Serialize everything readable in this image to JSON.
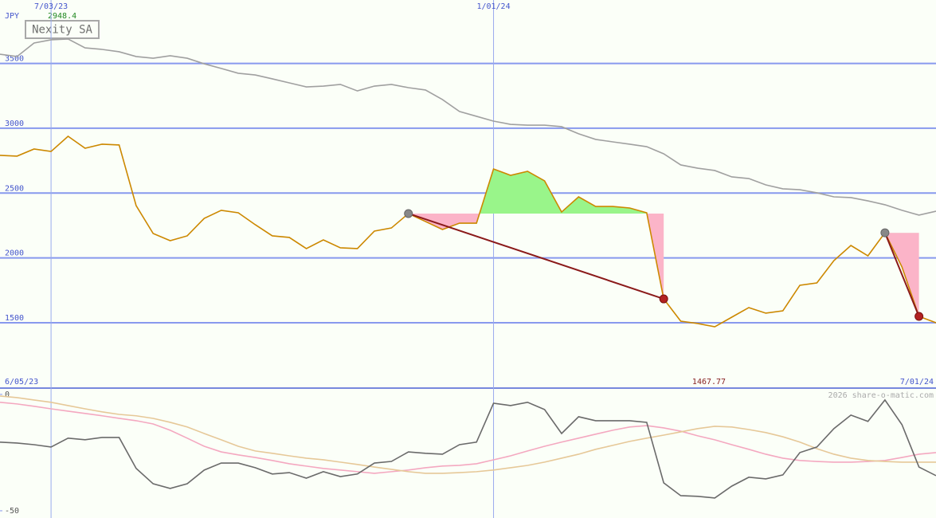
{
  "chart_data": [
    {
      "type": "line",
      "title": "Nexity SA",
      "unit": "JPY",
      "categories": [
        "6/05/23",
        null,
        null,
        "7/03/23",
        null,
        null,
        null,
        null,
        null,
        null,
        null,
        null,
        null,
        null,
        null,
        null,
        null,
        null,
        null,
        null,
        null,
        null,
        null,
        null,
        null,
        null,
        null,
        null,
        null,
        "1/01/24",
        null,
        null,
        null,
        null,
        null,
        null,
        null,
        null,
        null,
        null,
        null,
        null,
        null,
        null,
        null,
        null,
        null,
        null,
        null,
        null,
        null,
        null,
        null,
        null,
        null,
        "7/01/24"
      ],
      "series": [
        {
          "color": "#cc8800",
          "values": [
            2791,
            2785,
            2840,
            2821,
            2938,
            2846,
            2877,
            2871,
            2403,
            2188,
            2133,
            2170,
            2305,
            2367,
            2348,
            2256,
            2170,
            2158,
            2072,
            2139,
            2078,
            2072,
            2207,
            2231,
            2342,
            2281,
            2219,
            2268,
            2268,
            2686,
            2637,
            2668,
            2594,
            2354,
            2471,
            2397,
            2397,
            2385,
            2348,
            1684,
            1512,
            1494,
            1469,
            1543,
            1617,
            1574,
            1592,
            1789,
            1807,
            1979,
            2096,
            2016,
            2194,
            1930,
            1549,
            1500
          ]
        },
        {
          "color": "#a0a0a0",
          "values": [
            3571,
            3553,
            3657,
            3682,
            3688,
            3620,
            3608,
            3590,
            3553,
            3540,
            3559,
            3540,
            3497,
            3461,
            3424,
            3411,
            3381,
            3350,
            3319,
            3325,
            3338,
            3288,
            3325,
            3338,
            3313,
            3295,
            3221,
            3129,
            3092,
            3055,
            3030,
            3024,
            3024,
            3012,
            2957,
            2914,
            2895,
            2877,
            2858,
            2803,
            2717,
            2692,
            2674,
            2625,
            2612,
            2563,
            2533,
            2526,
            2502,
            2471,
            2465,
            2440,
            2410,
            2367,
            2330,
            2360
          ]
        }
      ],
      "max_label": 2948.4,
      "min_label": 1467.77,
      "ylim": [
        996,
        3989
      ],
      "yticks": [
        1500,
        2000,
        2500,
        3000,
        3500
      ],
      "grid": true
    },
    {
      "type": "line",
      "credit": "2026 share-o-matic.com",
      "series": [
        {
          "color": "#f4a8c0",
          "values": [
            -3.4,
            -4.1,
            -5.1,
            -6.2,
            -7.2,
            -8.2,
            -9.2,
            -10.3,
            -11.3,
            -12.7,
            -15.4,
            -18.8,
            -22.3,
            -24.7,
            -26,
            -27.1,
            -28.4,
            -29.8,
            -30.8,
            -31.8,
            -32.5,
            -33.2,
            -33.9,
            -33.2,
            -32.5,
            -31.5,
            -30.8,
            -30.5,
            -29.8,
            -28.1,
            -26.4,
            -24.3,
            -22.3,
            -20.5,
            -18.8,
            -17.1,
            -15.4,
            -14,
            -13.4,
            -14.4,
            -15.8,
            -17.8,
            -19.5,
            -21.6,
            -23.6,
            -25.7,
            -27.4,
            -28.4,
            -28.8,
            -29.1,
            -29.1,
            -28.8,
            -28.4,
            -27.1,
            -25.7,
            -25
          ]
        },
        {
          "color": "#e6c898",
          "values": [
            -0.7,
            -1.4,
            -2.4,
            -3.4,
            -4.8,
            -6.2,
            -7.5,
            -8.6,
            -9.2,
            -10.3,
            -12,
            -14,
            -16.8,
            -19.5,
            -22.3,
            -24.3,
            -25.3,
            -26.4,
            -27.4,
            -28.1,
            -29.1,
            -30.1,
            -31.2,
            -32.2,
            -33.2,
            -33.9,
            -33.9,
            -33.6,
            -33.2,
            -32.5,
            -31.5,
            -30.5,
            -29.1,
            -27.4,
            -25.7,
            -23.6,
            -21.9,
            -20.2,
            -18.8,
            -17.5,
            -16.1,
            -14.7,
            -13.7,
            -14,
            -15.1,
            -16.4,
            -18.2,
            -20.5,
            -23.3,
            -25.7,
            -27.4,
            -28.4,
            -28.8,
            -29.1,
            -29.1,
            -29.1
          ]
        },
        {
          "color": "#6a6a6a",
          "values": [
            -20.5,
            -20.9,
            -21.6,
            -22.6,
            -18.8,
            -19.5,
            -18.5,
            -18.5,
            -31.8,
            -38.4,
            -40.4,
            -38.4,
            -32.5,
            -29.5,
            -29.5,
            -31.5,
            -34.2,
            -33.6,
            -36,
            -33.2,
            -35.3,
            -34.2,
            -29.5,
            -28.8,
            -24.7,
            -25.3,
            -25.7,
            -21.6,
            -20.5,
            -3.8,
            -4.8,
            -3.4,
            -6.5,
            -16.8,
            -9.6,
            -11.3,
            -11.3,
            -11.3,
            -12,
            -38,
            -43.5,
            -43.8,
            -44.5,
            -39.4,
            -35.6,
            -36.3,
            -34.6,
            -25,
            -22.6,
            -14.7,
            -8.9,
            -11.6,
            -2.4,
            -13,
            -31.2,
            -34.9
          ]
        }
      ],
      "ylim": [
        -53.1,
        2.7
      ],
      "yticks": [
        0,
        -50
      ]
    }
  ]
}
